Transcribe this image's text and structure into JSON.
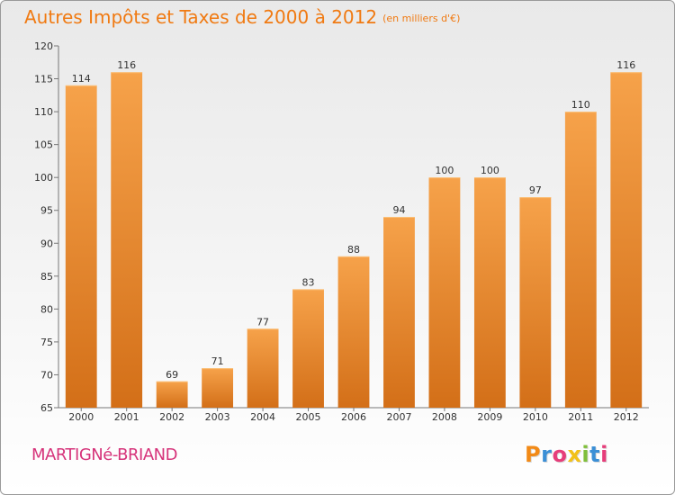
{
  "title": "Autres Impôts et Taxes de 2000 à 2012",
  "subtitle": "(en milliers d'€)",
  "place": "MARTIGNé-BRIAND",
  "logo": {
    "text": "Proxiti",
    "letters": [
      "P",
      "r",
      "o",
      "x",
      "i",
      "t",
      "i"
    ],
    "colors": [
      "#f28a17",
      "#3b8fd6",
      "#e63d7a",
      "#f2c118",
      "#7fbf3a",
      "#3b8fd6",
      "#e63d7a"
    ]
  },
  "colors": {
    "bar": "#f49a3c",
    "bar_dark": "#d5731c",
    "title": "#f07a12",
    "place": "#d6337a"
  },
  "chart_data": {
    "type": "bar",
    "categories": [
      "2000",
      "2001",
      "2002",
      "2003",
      "2004",
      "2005",
      "2006",
      "2007",
      "2008",
      "2009",
      "2010",
      "2011",
      "2012"
    ],
    "values": [
      114,
      116,
      69,
      71,
      77,
      83,
      88,
      94,
      100,
      100,
      97,
      110,
      116
    ],
    "ylim": [
      65,
      120
    ],
    "yticks": [
      65,
      70,
      75,
      80,
      85,
      90,
      95,
      100,
      105,
      110,
      115,
      120
    ],
    "grid": false,
    "data_labels": true
  }
}
